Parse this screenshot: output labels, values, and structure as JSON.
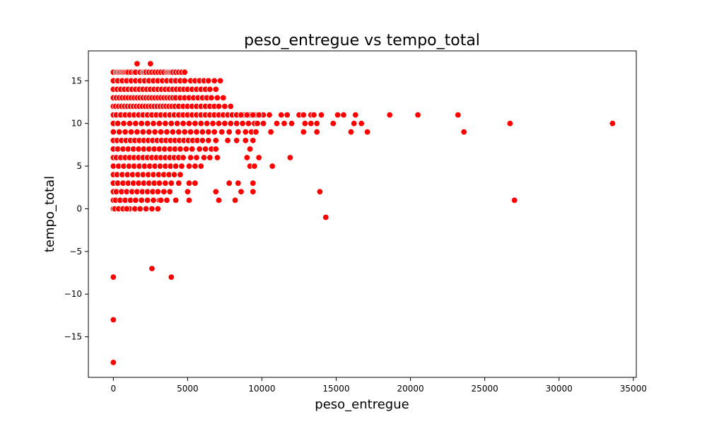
{
  "chart_data": {
    "type": "scatter",
    "title": "peso_entregue vs tempo_total",
    "xlabel": "peso_entregue",
    "ylabel": "tempo_total",
    "xlim": [
      -1680,
      35200
    ],
    "ylim": [
      -19.75,
      18.5
    ],
    "xticks": [
      0,
      5000,
      10000,
      15000,
      20000,
      25000,
      30000,
      35000
    ],
    "yticks": [
      -15,
      -10,
      -5,
      0,
      5,
      10,
      15
    ],
    "grid": false,
    "legend": "none",
    "marker_color": "#ff0000",
    "marker_edge": "#ffffff",
    "series": [
      {
        "x": [
          0,
          0,
          0,
          0,
          0,
          0,
          0,
          0,
          0,
          0,
          0,
          0,
          0,
          0,
          0,
          0,
          0,
          0,
          0,
          0,
          0,
          0,
          200,
          300,
          400,
          500,
          600,
          700,
          800,
          900,
          1000,
          1200,
          1400,
          1500,
          1600,
          1800,
          2000,
          2100,
          2200,
          2400,
          2500,
          2600,
          2800,
          3000,
          3200,
          3400,
          3600,
          3700,
          3800,
          3900,
          4000,
          4200,
          4400,
          4600,
          4800,
          300,
          600,
          900,
          1200,
          1500,
          1800,
          2100,
          2400,
          2700,
          3000,
          3300,
          3600,
          3900,
          4200,
          4500,
          4800,
          5200,
          5500,
          5800,
          6100,
          6400,
          6800,
          7200,
          250,
          500,
          750,
          1000,
          1250,
          1500,
          1750,
          2000,
          2250,
          2500,
          2750,
          3000,
          3250,
          3500,
          3750,
          4000,
          4250,
          4500,
          4750,
          5000,
          5300,
          5600,
          5900,
          6200,
          6500,
          6900,
          200,
          400,
          600,
          800,
          1000,
          1200,
          1400,
          1600,
          1800,
          2000,
          2200,
          2400,
          2600,
          2800,
          3000,
          3200,
          3400,
          3600,
          3800,
          4000,
          4200,
          4500,
          4800,
          5100,
          5400,
          5700,
          6000,
          6300,
          6600,
          7000,
          7400,
          150,
          350,
          550,
          750,
          950,
          1150,
          1350,
          1550,
          1750,
          1950,
          2150,
          2350,
          2550,
          2750,
          2950,
          3150,
          3350,
          3550,
          3750,
          3950,
          4150,
          4400,
          4700,
          5000,
          5300,
          5600,
          5900,
          6200,
          6500,
          6800,
          7100,
          7500,
          7900,
          300,
          600,
          900,
          1200,
          1500,
          1800,
          2100,
          2400,
          2700,
          3000,
          3300,
          3600,
          3900,
          4200,
          4500,
          4800,
          5100,
          5400,
          5700,
          6000,
          6400,
          6800,
          7200,
          7600,
          8000,
          8400,
          8800,
          9200,
          9600,
          9900,
          10100,
          200,
          500,
          800,
          1100,
          1400,
          1700,
          2000,
          2300,
          2600,
          2900,
          3200,
          3500,
          3800,
          4100,
          4400,
          4700,
          5000,
          5300,
          5600,
          5900,
          6200,
          6500,
          6800,
          7100,
          7400,
          7700,
          8000,
          8300,
          8600,
          9000,
          9400,
          9800,
          10500,
          11300,
          11700,
          12500,
          12800,
          13300,
          13500,
          14000,
          15100,
          15500,
          16300,
          18600,
          20500,
          23200,
          300,
          700,
          1100,
          1500,
          1900,
          2300,
          2700,
          3100,
          3500,
          3900,
          4300,
          4700,
          5100,
          5500,
          5900,
          6300,
          6700,
          7100,
          7500,
          7900,
          8300,
          8700,
          9100,
          9500,
          9700,
          10100,
          11000,
          11500,
          12000,
          12900,
          13300,
          13700,
          14800,
          16200,
          16700,
          26700,
          33600,
          400,
          800,
          1200,
          1600,
          2000,
          2400,
          2800,
          3200,
          3600,
          4000,
          4400,
          4800,
          5200,
          5600,
          6000,
          6400,
          6800,
          7300,
          7800,
          8400,
          8900,
          9300,
          9600,
          10600,
          12800,
          13700,
          16000,
          17100,
          23600,
          250,
          550,
          850,
          1150,
          1450,
          1750,
          2050,
          2350,
          2650,
          2950,
          3250,
          3550,
          3850,
          4150,
          4450,
          4750,
          5050,
          5350,
          5650,
          6000,
          6400,
          6900,
          7700,
          8300,
          8900,
          9400,
          300,
          650,
          1000,
          1350,
          1700,
          2050,
          2400,
          2750,
          3100,
          3450,
          3800,
          4150,
          4500,
          4900,
          5300,
          5800,
          6200,
          6600,
          6900,
          9200,
          200,
          500,
          800,
          1100,
          1400,
          1700,
          2000,
          2300,
          2600,
          2900,
          3200,
          3500,
          3800,
          4100,
          4400,
          4700,
          5200,
          5600,
          6100,
          6500,
          7000,
          9000,
          9800,
          11900,
          350,
          700,
          1050,
          1400,
          1750,
          2100,
          2450,
          2800,
          3150,
          3500,
          3850,
          4200,
          4600,
          5100,
          5500,
          5900,
          9200,
          9500,
          10700,
          250,
          600,
          950,
          1300,
          1650,
          2000,
          2350,
          2700,
          3050,
          3400,
          3750,
          4100,
          4500,
          300,
          650,
          1000,
          1350,
          1700,
          2050,
          2400,
          2750,
          3100,
          3500,
          3900,
          4400,
          5100,
          5500,
          7800,
          8400,
          9400,
          200,
          550,
          900,
          1250,
          1600,
          1950,
          2300,
          2650,
          3000,
          3400,
          3800,
          5000,
          6900,
          8600,
          9400,
          13900,
          150,
          450,
          800,
          1150,
          1500,
          1900,
          2300,
          2700,
          3100,
          3600,
          7100,
          8200,
          27000,
          100,
          400,
          750,
          1100,
          1450,
          1800,
          2200,
          2600,
          3000,
          3200,
          4200,
          5100,
          100,
          350,
          650,
          900,
          2200,
          14300,
          2600,
          3900
        ],
        "y": [
          16,
          15,
          14,
          13,
          12,
          11,
          10,
          9,
          8,
          7,
          6,
          5,
          4,
          3,
          2,
          1,
          0,
          -8,
          -13,
          -18,
          15,
          11,
          16,
          16,
          16,
          16,
          16,
          16,
          16,
          16,
          16,
          16,
          16,
          16,
          17,
          16,
          16,
          16,
          16,
          16,
          17,
          16,
          16,
          16,
          16,
          16,
          16,
          16,
          16,
          16,
          16,
          16,
          16,
          16,
          16,
          15,
          15,
          15,
          15,
          15,
          15,
          15,
          15,
          15,
          15,
          15,
          15,
          15,
          15,
          15,
          15,
          15,
          15,
          15,
          15,
          15,
          15,
          15,
          14,
          14,
          14,
          14,
          14,
          14,
          14,
          14,
          14,
          14,
          14,
          14,
          14,
          14,
          14,
          14,
          14,
          14,
          14,
          14,
          14,
          14,
          14,
          14,
          14,
          14,
          13,
          13,
          13,
          13,
          13,
          13,
          13,
          13,
          13,
          13,
          13,
          13,
          13,
          13,
          13,
          13,
          13,
          13,
          13,
          13,
          13,
          13,
          13,
          13,
          13,
          13,
          13,
          13,
          13,
          13,
          13,
          12,
          12,
          12,
          12,
          12,
          12,
          12,
          12,
          12,
          12,
          12,
          12,
          12,
          12,
          12,
          12,
          12,
          12,
          12,
          12,
          12,
          12,
          12,
          12,
          12,
          12,
          12,
          12,
          12,
          12,
          12,
          12,
          12,
          11,
          11,
          11,
          11,
          11,
          11,
          11,
          11,
          11,
          11,
          11,
          11,
          11,
          11,
          11,
          11,
          11,
          11,
          11,
          11,
          11,
          11,
          11,
          11,
          11,
          11,
          11,
          11,
          11,
          11,
          11,
          11,
          11,
          11,
          11,
          11,
          11,
          11,
          11,
          11,
          11,
          11,
          11,
          11,
          11,
          11,
          11,
          11,
          11,
          11,
          11,
          11,
          11,
          11,
          11,
          11,
          11,
          11,
          11,
          11,
          11,
          11,
          11,
          11,
          11,
          11,
          11,
          11,
          11,
          11,
          11,
          11,
          11,
          11,
          11,
          11,
          11,
          10,
          10,
          10,
          10,
          10,
          10,
          10,
          10,
          10,
          10,
          10,
          10,
          10,
          10,
          10,
          10,
          10,
          10,
          10,
          10,
          10,
          10,
          10,
          10,
          10,
          10,
          10,
          10,
          10,
          10,
          10,
          10,
          10,
          10,
          10,
          10,
          10,
          9,
          9,
          9,
          9,
          9,
          9,
          9,
          9,
          9,
          9,
          9,
          9,
          9,
          9,
          9,
          9,
          9,
          9,
          9,
          9,
          9,
          9,
          9,
          9,
          9,
          9,
          9,
          9,
          9,
          8,
          8,
          8,
          8,
          8,
          8,
          8,
          8,
          8,
          8,
          8,
          8,
          8,
          8,
          8,
          8,
          8,
          8,
          8,
          8,
          8,
          8,
          8,
          8,
          8,
          8,
          7,
          7,
          7,
          7,
          7,
          7,
          7,
          7,
          7,
          7,
          7,
          7,
          7,
          7,
          7,
          7,
          7,
          7,
          7,
          7,
          6,
          6,
          6,
          6,
          6,
          6,
          6,
          6,
          6,
          6,
          6,
          6,
          6,
          6,
          6,
          6,
          6,
          6,
          6,
          6,
          6,
          6,
          6,
          6,
          5,
          5,
          5,
          5,
          5,
          5,
          5,
          5,
          5,
          5,
          5,
          5,
          5,
          5,
          5,
          5,
          5,
          5,
          5,
          4,
          4,
          4,
          4,
          4,
          4,
          4,
          4,
          4,
          4,
          4,
          4,
          4,
          3,
          3,
          3,
          3,
          3,
          3,
          3,
          3,
          3,
          3,
          3,
          3,
          3,
          3,
          3,
          3,
          3,
          2,
          2,
          2,
          2,
          2,
          2,
          2,
          2,
          2,
          2,
          2,
          2,
          2,
          2,
          2,
          2,
          1,
          1,
          1,
          1,
          1,
          1,
          1,
          1,
          1,
          1,
          1,
          1,
          1,
          0,
          0,
          0,
          0,
          0,
          0,
          0,
          0,
          0,
          1,
          1,
          1,
          0,
          0,
          0,
          0,
          0,
          -1,
          -7,
          -8
        ]
      }
    ]
  }
}
